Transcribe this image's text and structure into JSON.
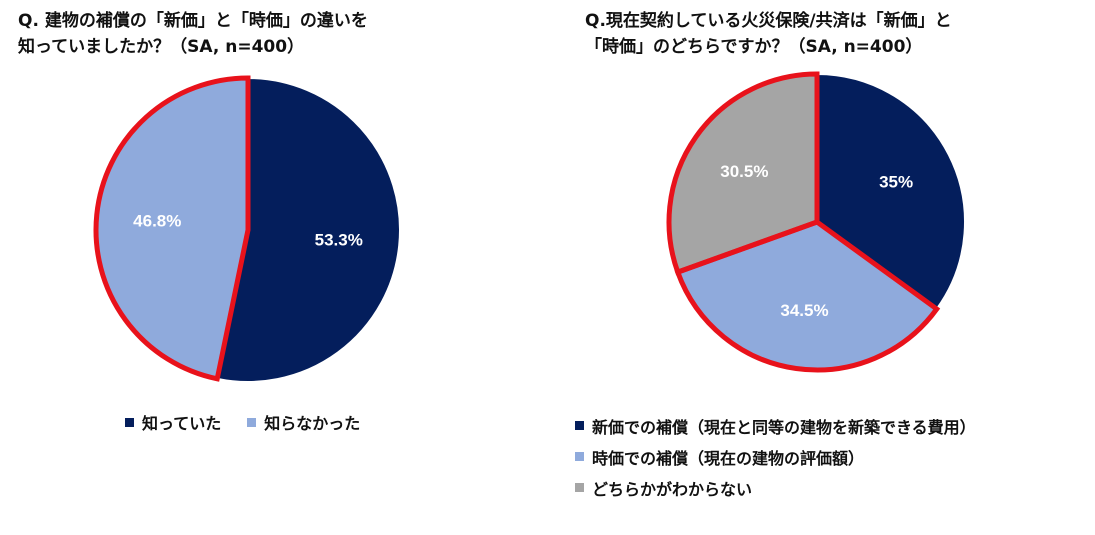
{
  "chart_data": [
    {
      "type": "pie",
      "title_lines": [
        "Q. 建物の補償の「新価」と「時価」の違いを",
        "知っていましたか？（SA, n=400）"
      ],
      "categories": [
        "知っていた",
        "知らなかった"
      ],
      "values": [
        53.3,
        46.8
      ],
      "labels": [
        "53.3%",
        "46.8%"
      ],
      "colors": [
        "#041E5C",
        "#8FAADC"
      ],
      "label_colors": [
        "#ffffff",
        "#ffffff"
      ],
      "highlight": "知らなかった",
      "legend": "bottom"
    },
    {
      "type": "pie",
      "title_lines": [
        "Q.現在契約している火災保険/共済は「新価」と",
        "「時価」のどちらですか？（SA, n=400）"
      ],
      "categories": [
        "新価での補償（現在と同等の建物を新築できる費用）",
        "時価での補償（現在の建物の評価額）",
        "どちらかがわからない"
      ],
      "values": [
        35,
        34.5,
        30.5
      ],
      "labels": [
        "35%",
        "34.5%",
        "30.5%"
      ],
      "colors": [
        "#041E5C",
        "#8FAADC",
        "#A5A5A5"
      ],
      "label_colors": [
        "#ffffff",
        "#ffffff",
        "#ffffff"
      ],
      "highlight": "時価での補償（現在の建物の評価額）, どちらかがわからない",
      "legend": "bottom"
    }
  ],
  "colors": {
    "highlight_outline": "#E8121B",
    "slice_border": "#ffffff"
  }
}
